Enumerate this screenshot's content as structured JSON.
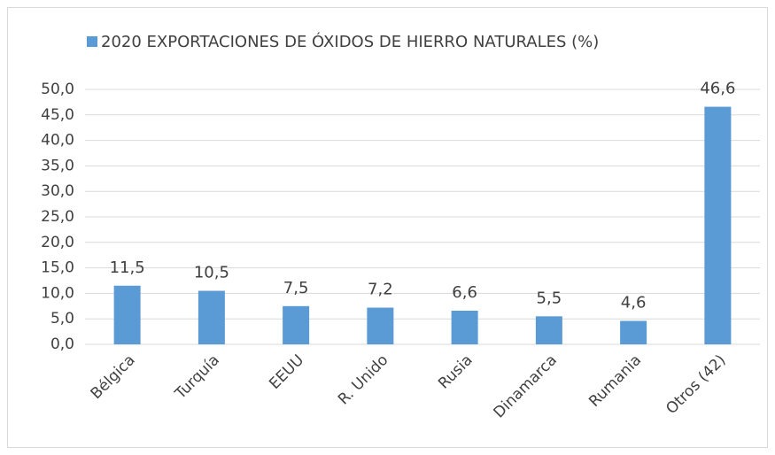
{
  "chart_data": {
    "type": "bar",
    "categories": [
      "Bélgica",
      "Turquía",
      "EEUU",
      "R. Unido",
      "Rusia",
      "Dinamarca",
      "Rumania",
      "Otros (42)"
    ],
    "series": [
      {
        "name": "2020 EXPORTACIONES DE ÓXIDOS DE HIERRO NATURALES (%)",
        "color": "#5b9bd5",
        "values": [
          11.5,
          10.5,
          7.5,
          7.2,
          6.6,
          5.5,
          4.6,
          46.6
        ],
        "value_labels": [
          "11,5",
          "10,5",
          "7,5",
          "7,2",
          "6,6",
          "5,5",
          "4,6",
          "46,6"
        ]
      }
    ],
    "ylim": [
      0,
      50
    ],
    "yticks": [
      {
        "value": 0,
        "label": "0,0"
      },
      {
        "value": 5,
        "label": "5,0"
      },
      {
        "value": 10,
        "label": "10,0"
      },
      {
        "value": 15,
        "label": "15,0"
      },
      {
        "value": 20,
        "label": "20,0"
      },
      {
        "value": 25,
        "label": "25,0"
      },
      {
        "value": 30,
        "label": "30,0"
      },
      {
        "value": 35,
        "label": "35,0"
      },
      {
        "value": 40,
        "label": "40,0"
      },
      {
        "value": 45,
        "label": "45,0"
      },
      {
        "value": 50,
        "label": "50,0"
      }
    ],
    "grid": true,
    "legend": "top"
  }
}
